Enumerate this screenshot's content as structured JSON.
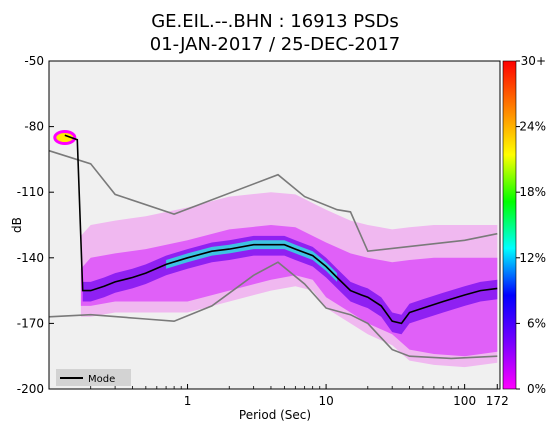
{
  "chart_data": {
    "type": "heatmap",
    "title_line1": "GE.EIL.--.BHN : 16913 PSDs",
    "title_line2": "01-JAN-2017 / 25-DEC-2017",
    "xlabel": "Period (Sec)",
    "ylabel": "dB",
    "x_scale": "log",
    "xlim": [
      0.1,
      180
    ],
    "ylim": [
      -200,
      -50
    ],
    "x_ticks": [
      {
        "value": 1,
        "label": "1"
      },
      {
        "value": 10,
        "label": "10"
      },
      {
        "value": 100,
        "label": "100"
      },
      {
        "value": 172,
        "label": "172"
      }
    ],
    "y_ticks": [
      {
        "value": -50,
        "label": "-50"
      },
      {
        "value": -80,
        "label": "-80"
      },
      {
        "value": -110,
        "label": "-110"
      },
      {
        "value": -140,
        "label": "-140"
      },
      {
        "value": -170,
        "label": "-170"
      },
      {
        "value": -200,
        "label": "-200"
      }
    ],
    "colorbar": {
      "ticks": [
        {
          "value": 30,
          "label": "30+"
        },
        {
          "value": 24,
          "label": "24%"
        },
        {
          "value": 18,
          "label": "18%"
        },
        {
          "value": 12,
          "label": "12%"
        },
        {
          "value": 6,
          "label": "6%"
        },
        {
          "value": 0,
          "label": "0%"
        }
      ],
      "colors": [
        "#ff00ff",
        "#7700ff",
        "#0000ff",
        "#00ffff",
        "#00ff00",
        "#ffff00",
        "#ff8000",
        "#ff0000"
      ]
    },
    "legend": {
      "label": "Mode",
      "placement": "bottom-left"
    },
    "mode": [
      [
        0.13,
        -84
      ],
      [
        0.16,
        -86
      ],
      [
        0.175,
        -155
      ],
      [
        0.2,
        -155
      ],
      [
        0.25,
        -153
      ],
      [
        0.3,
        -151
      ],
      [
        0.4,
        -149
      ],
      [
        0.5,
        -147
      ],
      [
        0.7,
        -143
      ],
      [
        1,
        -140
      ],
      [
        1.5,
        -137
      ],
      [
        2,
        -136
      ],
      [
        3,
        -134
      ],
      [
        4,
        -134
      ],
      [
        5,
        -134
      ],
      [
        6,
        -136
      ],
      [
        8,
        -139
      ],
      [
        10,
        -144
      ],
      [
        12,
        -149
      ],
      [
        15,
        -155
      ],
      [
        18,
        -157
      ],
      [
        20,
        -158
      ],
      [
        25,
        -162
      ],
      [
        30,
        -169
      ],
      [
        35,
        -170
      ],
      [
        40,
        -165
      ],
      [
        50,
        -163
      ],
      [
        70,
        -160
      ],
      [
        100,
        -157
      ],
      [
        130,
        -155
      ],
      [
        172,
        -154
      ]
    ],
    "nhnm": [
      [
        0.1,
        -91
      ],
      [
        0.2,
        -97
      ],
      [
        0.3,
        -111
      ],
      [
        0.8,
        -120
      ],
      [
        4.5,
        -102
      ],
      [
        7,
        -112
      ],
      [
        12,
        -118
      ],
      [
        15,
        -119
      ],
      [
        20,
        -137
      ],
      [
        100,
        -132
      ],
      [
        172,
        -129
      ]
    ],
    "nlnm": [
      [
        0.1,
        -167
      ],
      [
        0.2,
        -166
      ],
      [
        0.5,
        -168
      ],
      [
        0.8,
        -169
      ],
      [
        1.5,
        -162
      ],
      [
        3,
        -148
      ],
      [
        4.5,
        -142
      ],
      [
        7,
        -152
      ],
      [
        10,
        -163
      ],
      [
        15,
        -166
      ],
      [
        20,
        -170
      ],
      [
        30,
        -182
      ],
      [
        40,
        -185
      ],
      [
        80,
        -186
      ],
      [
        172,
        -185
      ]
    ],
    "distribution_band": {
      "x": [
        0.17,
        0.2,
        0.3,
        0.5,
        1,
        2,
        4,
        6,
        8,
        10,
        15,
        20,
        30,
        40,
        60,
        100,
        172
      ],
      "y_low": [
        -162,
        -162,
        -160,
        -160,
        -160,
        -155,
        -150,
        -148,
        -150,
        -158,
        -165,
        -170,
        -175,
        -182,
        -184,
        -185,
        -183
      ],
      "y_high": [
        -145,
        -140,
        -138,
        -136,
        -132,
        -127,
        -125,
        -126,
        -130,
        -133,
        -138,
        -140,
        -142,
        -141,
        -140,
        -140,
        -140
      ]
    }
  }
}
